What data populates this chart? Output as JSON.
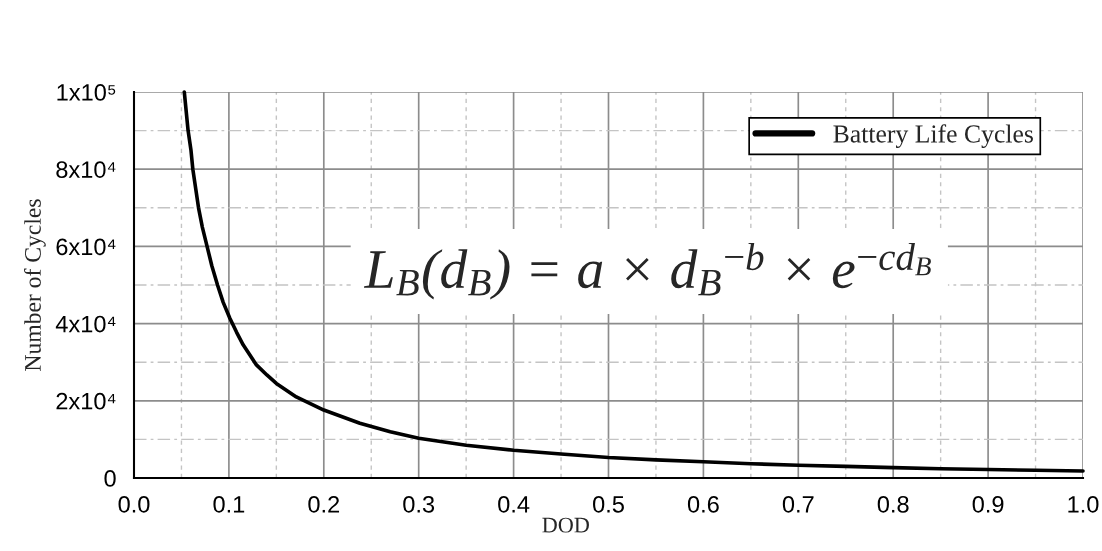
{
  "chart_data": {
    "type": "line",
    "xlabel": "DOD",
    "ylabel": "Number of Cycles",
    "annotations": [
      "L$_{B}$(d$_{B}$) = a × d$_{B}$$^{−b}$ × e$^{−cd}$$_{B}$"
    ],
    "x": [
      0.053,
      0.057,
      0.06,
      0.062,
      0.065,
      0.068,
      0.072,
      0.077,
      0.082,
      0.088,
      0.094,
      0.101,
      0.108,
      0.115,
      0.129,
      0.14,
      0.15,
      0.171,
      0.2,
      0.238,
      0.27,
      0.3,
      0.35,
      0.4,
      0.45,
      0.5,
      0.55,
      0.6,
      0.65,
      0.7,
      0.75,
      0.8,
      0.85,
      0.9,
      0.95,
      1.0
    ],
    "series": [
      {
        "name": "Battery Life Cycles",
        "color": "#000000",
        "values": [
          100000,
          90000,
          85000,
          80000,
          75000,
          70000,
          65000,
          60000,
          55000,
          50000,
          45500,
          41400,
          37800,
          34500,
          29300,
          26700,
          24500,
          21000,
          17600,
          14200,
          12000,
          10300,
          8500,
          7200,
          6200,
          5300,
          4700,
          4200,
          3700,
          3300,
          3000,
          2700,
          2400,
          2200,
          2000,
          1800
        ]
      }
    ],
    "xlim": [
      0,
      1
    ],
    "ylim": [
      0,
      100000
    ],
    "xticks": [
      {
        "value": 0,
        "label": "0.0"
      },
      {
        "value": 0.05,
        "label": null
      },
      0.1,
      {
        "value": 0.15,
        "label": null
      },
      0.2,
      {
        "value": 0.25,
        "label": null
      },
      0.3,
      {
        "value": 0.35,
        "label": null
      },
      0.4,
      {
        "value": 0.45,
        "label": null
      },
      0.5,
      {
        "value": 0.55,
        "label": null
      },
      0.6,
      {
        "value": 0.65,
        "label": null
      },
      0.7,
      {
        "value": 0.75,
        "label": null
      },
      0.8,
      {
        "value": 0.85,
        "label": null
      },
      0.9,
      {
        "value": 0.95,
        "label": null
      },
      {
        "value": 1,
        "label": "1.0"
      }
    ],
    "yticks": [
      0,
      {
        "value": 10000,
        "label": null
      },
      {
        "value": 20000,
        "label": "2x10⁴"
      },
      {
        "value": 30000,
        "label": null
      },
      {
        "value": 40000,
        "label": "4x10⁴"
      },
      {
        "value": 50000,
        "label": null
      },
      {
        "value": 60000,
        "label": "6x10⁴"
      },
      {
        "value": 70000,
        "label": null
      },
      {
        "value": 80000,
        "label": "8x10⁴"
      },
      {
        "value": 90000,
        "label": null
      },
      {
        "value": 100000,
        "label": "1x10⁵"
      }
    ],
    "grid": true,
    "legend": "top right",
    "line_style": "solid"
  }
}
